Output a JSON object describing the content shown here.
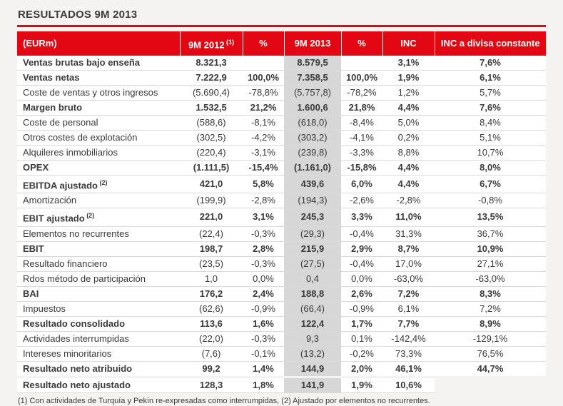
{
  "accent_color": "#e30613",
  "highlight_color": "#d7d7d7",
  "title": "RESULTADOS 9M 2013",
  "table": {
    "columns": [
      {
        "text": "(EURm)",
        "sup": ""
      },
      {
        "text": "9M 2012",
        "sup": "(1)"
      },
      {
        "text": "%",
        "sup": ""
      },
      {
        "text": "9M 2013",
        "sup": ""
      },
      {
        "text": "%",
        "sup": ""
      },
      {
        "text": "INC",
        "sup": ""
      },
      {
        "text": "INC a divisa constante",
        "sup": ""
      }
    ],
    "rows": [
      {
        "label": "Ventas brutas bajo enseña",
        "sup": "",
        "bold": true,
        "values": [
          "8.321,3",
          "",
          "8.579,5",
          "",
          "3,1%",
          "7,6%"
        ]
      },
      {
        "label": "Ventas netas",
        "sup": "",
        "bold": true,
        "values": [
          "7.222,9",
          "100,0%",
          "7.358,5",
          "100,0%",
          "1,9%",
          "6,1%"
        ]
      },
      {
        "label": "Coste de ventas y otros ingresos",
        "sup": "",
        "bold": false,
        "values": [
          "(5.690,4)",
          "-78,8%",
          "(5.757,8)",
          "-78,2%",
          "1,2%",
          "5,7%"
        ]
      },
      {
        "label": "Margen bruto",
        "sup": "",
        "bold": true,
        "values": [
          "1.532,5",
          "21,2%",
          "1.600,6",
          "21,8%",
          "4,4%",
          "7,6%"
        ]
      },
      {
        "label": "Coste de personal",
        "sup": "",
        "bold": false,
        "values": [
          "(588,6)",
          "-8,1%",
          "(618,0)",
          "-8,4%",
          "5,0%",
          "8,4%"
        ]
      },
      {
        "label": "Otros costes de explotación",
        "sup": "",
        "bold": false,
        "values": [
          "(302,5)",
          "-4,2%",
          "(303,2)",
          "-4,1%",
          "0,2%",
          "5,1%"
        ]
      },
      {
        "label": "Alquileres inmobiliarios",
        "sup": "",
        "bold": false,
        "values": [
          "(220,4)",
          "-3,1%",
          "(239,8)",
          "-3,3%",
          "8,8%",
          "10,7%"
        ]
      },
      {
        "label": "OPEX",
        "sup": "",
        "bold": true,
        "values": [
          "(1.111,5)",
          "-15,4%",
          "(1.161,0)",
          "-15,8%",
          "4,4%",
          "8,0%"
        ]
      },
      {
        "label": "EBITDA ajustado",
        "sup": "(2)",
        "bold": true,
        "values": [
          "421,0",
          "5,8%",
          "439,6",
          "6,0%",
          "4,4%",
          "6,7%"
        ]
      },
      {
        "label": "Amortización",
        "sup": "",
        "bold": false,
        "values": [
          "(199,9)",
          "-2,8%",
          "(194,3)",
          "-2,6%",
          "-2,8%",
          "-0,8%"
        ]
      },
      {
        "label": "EBIT ajustado",
        "sup": "(2)",
        "bold": true,
        "values": [
          "221,0",
          "3,1%",
          "245,3",
          "3,3%",
          "11,0%",
          "13,5%"
        ]
      },
      {
        "label": "Elementos no recurrentes",
        "sup": "",
        "bold": false,
        "values": [
          "(22,4)",
          "-0,3%",
          "(29,3)",
          "-0,4%",
          "31,3%",
          "36,7%"
        ]
      },
      {
        "label": "EBIT",
        "sup": "",
        "bold": true,
        "values": [
          "198,7",
          "2,8%",
          "215,9",
          "2,9%",
          "8,7%",
          "10,9%"
        ]
      },
      {
        "label": "Resultado financiero",
        "sup": "",
        "bold": false,
        "values": [
          "(23,5)",
          "-0,3%",
          "(27,5)",
          "-0,4%",
          "17,0%",
          "27,1%"
        ]
      },
      {
        "label": "Rdos método de participación",
        "sup": "",
        "bold": false,
        "values": [
          "1,0",
          "0,0%",
          "0,4",
          "0,0%",
          "-63,0%",
          "-63,0%"
        ]
      },
      {
        "label": "BAI",
        "sup": "",
        "bold": true,
        "values": [
          "176,2",
          "2,4%",
          "188,8",
          "2,6%",
          "7,2%",
          "8,3%"
        ]
      },
      {
        "label": "Impuestos",
        "sup": "",
        "bold": false,
        "values": [
          "(62,6)",
          "-0,9%",
          "(66,4)",
          "-0,9%",
          "6,1%",
          "7,2%"
        ]
      },
      {
        "label": "Resultado consolidado",
        "sup": "",
        "bold": true,
        "values": [
          "113,6",
          "1,6%",
          "122,4",
          "1,7%",
          "7,7%",
          "8,9%"
        ]
      },
      {
        "label": "Actividades interrumpidas",
        "sup": "",
        "bold": false,
        "values": [
          "(22,0)",
          "-0,3%",
          "9,3",
          "0,1%",
          "-142,4%",
          "-129,1%"
        ]
      },
      {
        "label": "Intereses minoritarios",
        "sup": "",
        "bold": false,
        "values": [
          "(7,6)",
          "-0,1%",
          "(13,2)",
          "-0,2%",
          "73,3%",
          "76,5%"
        ]
      },
      {
        "label": "Resultado neto atribuido",
        "sup": "",
        "bold": true,
        "values": [
          "99,2",
          "1,4%",
          "144,9",
          "2,0%",
          "46,1%",
          "44,7%"
        ]
      },
      {
        "label": "Resultado neto ajustado",
        "sup": "",
        "bold": true,
        "values": [
          "128,3",
          "1,8%",
          "141,9",
          "1,9%",
          "10,6%",
          ""
        ]
      }
    ]
  },
  "footnote": "(1) Con actividades de Turquía y Pekín re-expresadas como interrumpidas, (2) Ajustado por elementos no recurrentes."
}
